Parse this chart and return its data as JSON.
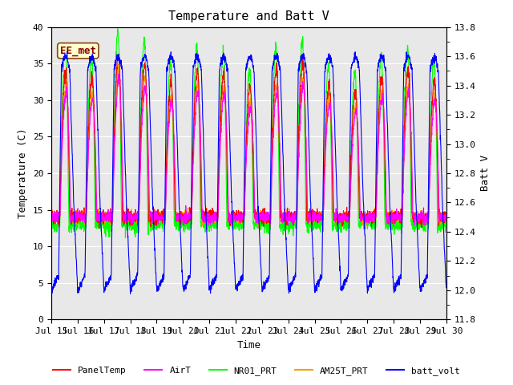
{
  "title": "Temperature and Batt V",
  "xlabel": "Time",
  "ylabel_left": "Temperature (C)",
  "ylabel_right": "Batt V",
  "annotation": "EE_met",
  "ylim_left": [
    0,
    40
  ],
  "ylim_right": [
    11.8,
    13.8
  ],
  "xtick_labels": [
    "Jul 15",
    "Jul 16",
    "Jul 17",
    "Jul 18",
    "Jul 19",
    "Jul 20",
    "Jul 21",
    "Jul 22",
    "Jul 23",
    "Jul 24",
    "Jul 25",
    "Jul 26",
    "Jul 27",
    "Jul 28",
    "Jul 29",
    "Jul 30"
  ],
  "legend_entries": [
    "PanelTemp",
    "AirT",
    "NR01_PRT",
    "AM25T_PRT",
    "batt_volt"
  ],
  "colors": {
    "PanelTemp": "#ff0000",
    "AirT": "#ff00ff",
    "NR01_PRT": "#00ff00",
    "AM25T_PRT": "#ff9900",
    "batt_volt": "#0000ff"
  },
  "bg_color": "#e8e8e8",
  "grid_color": "#ffffff",
  "font_family": "monospace",
  "title_fontsize": 11,
  "label_fontsize": 9,
  "tick_fontsize": 8,
  "annot_fontsize": 9,
  "legend_fontsize": 8,
  "linewidth": 0.8,
  "n_days": 15,
  "pts_per_day": 144
}
